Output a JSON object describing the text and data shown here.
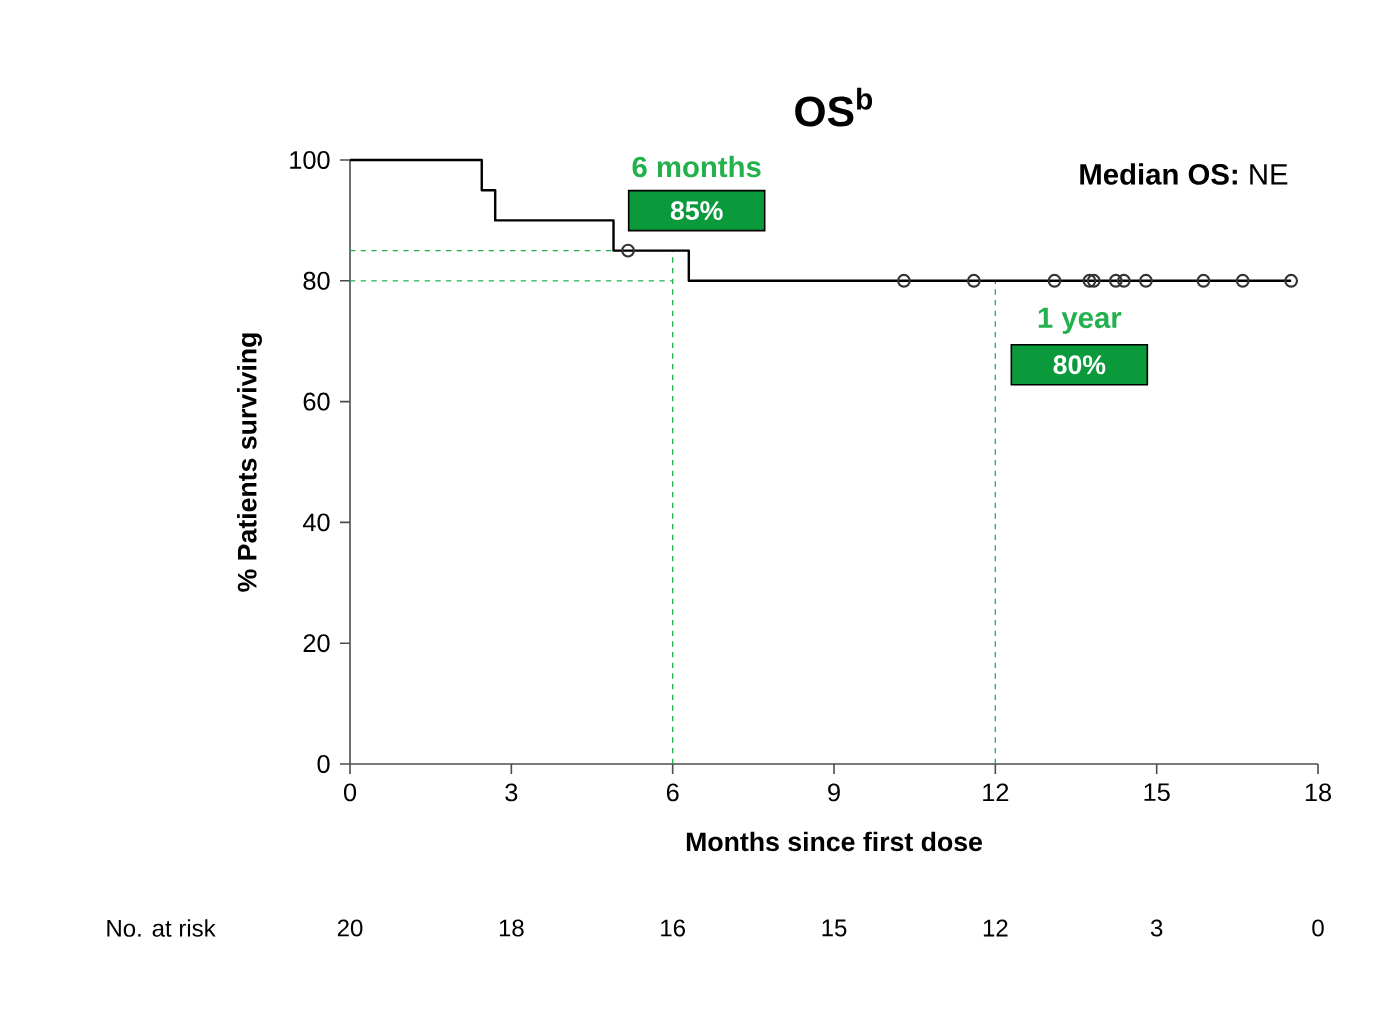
{
  "chart_data": {
    "type": "step",
    "title": "OS$^{b}$",
    "xlabel": "Months since first dose",
    "ylabel": "% Patients surviving",
    "xlim": [
      0,
      18
    ],
    "ylim": [
      0,
      100
    ],
    "xticks": [
      0,
      3,
      6,
      9,
      12,
      15,
      18
    ],
    "yticks": [
      0,
      20,
      40,
      60,
      80,
      100
    ],
    "grid": false,
    "series": [
      {
        "type": "step",
        "color": "#000000",
        "marker": "none",
        "x": [
          0,
          2.45,
          2.7,
          4.9,
          6.3,
          17.5
        ],
        "values": [
          100,
          95,
          90,
          85,
          80,
          80
        ]
      },
      {
        "type": "scatter",
        "color": "#333333",
        "marker": "circle",
        "x": [
          5.17,
          10.3,
          11.6,
          13.1,
          13.75,
          13.83,
          14.24,
          14.39,
          14.8,
          15.87,
          16.6,
          17.5
        ],
        "values": [
          85,
          80,
          80,
          80,
          80,
          80,
          80,
          80,
          80,
          80,
          80,
          80
        ]
      }
    ],
    "ref_lines": [
      {
        "axis": "x",
        "value": 6,
        "color": "#22b14c",
        "line_style": "dashed"
      },
      {
        "axis": "x",
        "value": 12,
        "color": "#22b14c",
        "line_style": "dashed"
      },
      {
        "axis": "y",
        "value": 85,
        "color": "#22b14c",
        "line_style": "dashed"
      },
      {
        "axis": "y",
        "value": 80,
        "color": "#22b14c",
        "line_style": "dashed"
      }
    ],
    "annotations": [
      {
        "text": "6 months",
        "x": 6,
        "y": 85
      },
      "85%",
      {
        "text": "1 year",
        "x": 12,
        "y": 80
      },
      "80%",
      "**Median OS:** NE",
      "No. at risk",
      "20",
      "18",
      "16",
      "15",
      "12",
      "3",
      "0"
    ]
  }
}
